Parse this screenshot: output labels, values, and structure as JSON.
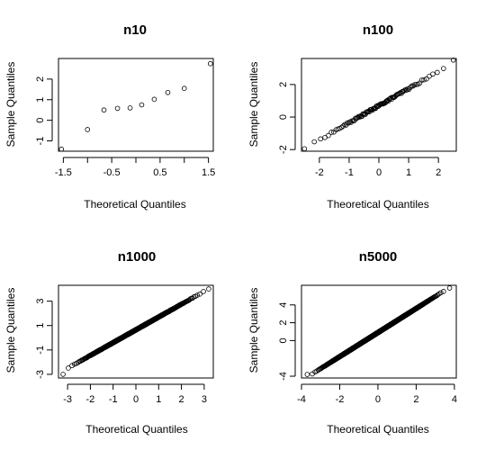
{
  "chart_data": [
    {
      "type": "scatter",
      "title": "n10",
      "xlabel": "Theoretical Quantiles",
      "ylabel": "Sample Quantiles",
      "xlim": [
        -1.6,
        1.6
      ],
      "ylim": [
        -1.5,
        3.0
      ],
      "xticks": [
        -1.5,
        -1.0,
        -0.5,
        0.0,
        0.5,
        1.0,
        1.5
      ],
      "xtick_labels": [
        "-1.5",
        "",
        "-0.5",
        "",
        "0.5",
        "",
        "1.5"
      ],
      "yticks": [
        -1,
        0,
        1,
        2
      ],
      "ytick_labels": [
        "-1",
        "0",
        "1",
        "2"
      ],
      "grid": false,
      "legend": "none",
      "n": 10,
      "points": {
        "x": [
          -1.54,
          -1.0,
          -0.66,
          -0.38,
          -0.12,
          0.12,
          0.38,
          0.66,
          1.0,
          1.54
        ],
        "y": [
          -1.4,
          -0.45,
          0.5,
          0.58,
          0.6,
          0.75,
          1.02,
          1.35,
          1.55,
          2.75
        ]
      }
    },
    {
      "type": "scatter",
      "title": "n100",
      "xlabel": "Theoretical Quantiles",
      "ylabel": "Sample Quantiles",
      "xlim": [
        -2.6,
        2.6
      ],
      "ylim": [
        -2.1,
        3.6
      ],
      "xticks": [
        -2,
        -1,
        0,
        1,
        2
      ],
      "xtick_labels": [
        "-2",
        "-1",
        "0",
        "1",
        "2"
      ],
      "yticks": [
        -2,
        0,
        2
      ],
      "ytick_labels": [
        "-2",
        "0",
        "2"
      ],
      "grid": false,
      "legend": "none",
      "n": 100,
      "fit": {
        "intercept": 0.7,
        "slope": 1.05
      },
      "extremes": {
        "x_min": -2.5,
        "y_min": -1.95,
        "x_max": 2.5,
        "y_max": 3.5
      }
    },
    {
      "type": "scatter",
      "title": "n1000",
      "xlabel": "Theoretical Quantiles",
      "ylabel": "Sample Quantiles",
      "xlim": [
        -3.4,
        3.4
      ],
      "ylim": [
        -3.3,
        4.3
      ],
      "xticks": [
        -3,
        -2,
        -1,
        0,
        1,
        2,
        3
      ],
      "xtick_labels": [
        "-3",
        "-2",
        "-1",
        "0",
        "1",
        "2",
        "3"
      ],
      "yticks": [
        -3,
        -1,
        1,
        3
      ],
      "ytick_labels": [
        "-3",
        "-1",
        "1",
        "3"
      ],
      "grid": false,
      "legend": "none",
      "n": 1000,
      "fit": {
        "intercept": 0.65,
        "slope": 1.05
      },
      "extremes": {
        "x_min": -3.2,
        "y_min": -3.0,
        "x_max": 3.2,
        "y_max": 4.0
      }
    },
    {
      "type": "scatter",
      "title": "n5000",
      "xlabel": "Theoretical Quantiles",
      "ylabel": "Sample Quantiles",
      "xlim": [
        -4.0,
        4.1
      ],
      "ylim": [
        -4.2,
        6.2
      ],
      "xticks": [
        -4,
        -2,
        0,
        2,
        4
      ],
      "xtick_labels": [
        "-4",
        "-2",
        "0",
        "2",
        "4"
      ],
      "yticks": [
        -4,
        0,
        2,
        4
      ],
      "ytick_labels": [
        "-4",
        "0",
        "2",
        "4"
      ],
      "grid": false,
      "legend": "none",
      "n": 5000,
      "fit": {
        "intercept": 0.9,
        "slope": 1.35
      },
      "extremes": {
        "x_min": -3.7,
        "y_min": -3.8,
        "x_max": 3.75,
        "y_max": 5.9
      }
    }
  ]
}
